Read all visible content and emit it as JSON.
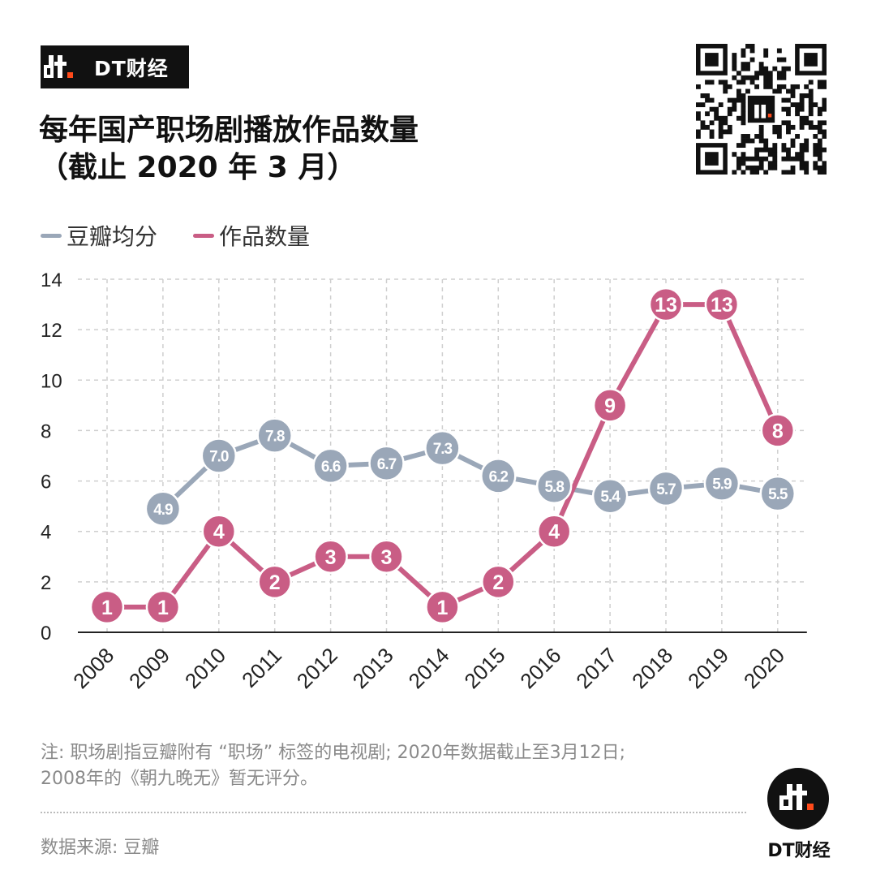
{
  "brand": {
    "name": "DT财经"
  },
  "title": {
    "line1": "每年国产职场剧播放作品数量",
    "line2": "（截止 2020 年 3 月）"
  },
  "legend": [
    {
      "label": "豆瓣均分",
      "color": "#9aa7b8"
    },
    {
      "label": "作品数量",
      "color": "#c95d85"
    }
  ],
  "chart_data": {
    "type": "line",
    "categories": [
      "2008",
      "2009",
      "2010",
      "2011",
      "2012",
      "2013",
      "2014",
      "2015",
      "2016",
      "2017",
      "2018",
      "2019",
      "2020"
    ],
    "ylim": [
      0,
      14
    ],
    "yticks": [
      0,
      2,
      4,
      6,
      8,
      10,
      12,
      14
    ],
    "grid": true,
    "legend_position": "top-left",
    "series": [
      {
        "name": "豆瓣均分",
        "color": "#9aa7b8",
        "values": [
          null,
          4.9,
          7.0,
          7.8,
          6.6,
          6.7,
          7.3,
          6.2,
          5.8,
          5.4,
          5.7,
          5.9,
          5.5
        ],
        "labels": [
          "",
          "4.9",
          "7.0",
          "7.8",
          "6.6",
          "6.7",
          "7.3",
          "6.2",
          "5.8",
          "5.4",
          "5.7",
          "5.9",
          "5.5"
        ]
      },
      {
        "name": "作品数量",
        "color": "#c95d85",
        "values": [
          1,
          1,
          4,
          2,
          3,
          3,
          1,
          2,
          4,
          9,
          13,
          13,
          8
        ],
        "labels": [
          "1",
          "1",
          "4",
          "2",
          "3",
          "3",
          "1",
          "2",
          "4",
          "9",
          "13",
          "13",
          "8"
        ]
      }
    ]
  },
  "note": {
    "line1": "注: 职场剧指豆瓣附有 “职场” 标签的电视剧; 2020年数据截止至3月12日;",
    "line2": "2008年的《朝九晚无》暂无评分。"
  },
  "source": "数据来源: 豆瓣",
  "footer": {
    "brand": "DT财经"
  }
}
